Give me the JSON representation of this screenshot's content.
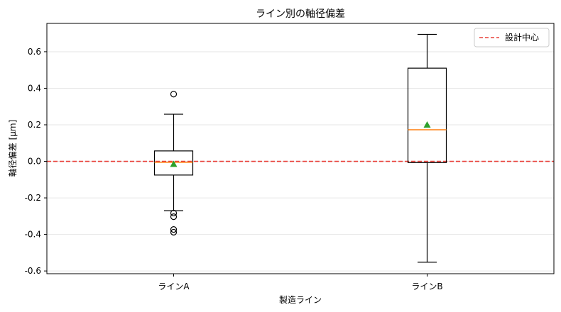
{
  "chart_data": {
    "type": "box",
    "title": "ライン別の軸径偏差",
    "xlabel": "製造ライン",
    "ylabel": "軸径偏差 [μm]",
    "ylim": [
      -0.615,
      0.755
    ],
    "yticks": [
      -0.6,
      -0.4,
      -0.2,
      0.0,
      0.2,
      0.4,
      0.6
    ],
    "ytick_labels": [
      "-0.6",
      "-0.4",
      "-0.2",
      "0.0",
      "0.2",
      "0.4",
      "0.6"
    ],
    "grid": "horizontal",
    "legend_position": "top-right",
    "categories": [
      "ラインA",
      "ラインB"
    ],
    "boxes": [
      {
        "category": "ラインA",
        "whisker_low": -0.27,
        "q1": -0.075,
        "median": -0.005,
        "q3": 0.057,
        "whisker_high": 0.258,
        "mean": -0.015,
        "outliers": [
          0.368,
          -0.283,
          -0.303,
          -0.373,
          -0.388
        ]
      },
      {
        "category": "ラインB",
        "whisker_low": -0.552,
        "q1": -0.007,
        "median": 0.173,
        "q3": 0.51,
        "whisker_high": 0.695,
        "mean": 0.2,
        "outliers": []
      }
    ],
    "reference_line": {
      "value": 0.0,
      "label": "設計中心",
      "color": "#e8403a",
      "style": "dashed"
    },
    "colors": {
      "box": "#000000",
      "median": "#ff7f0e",
      "mean": "#2ca02c",
      "grid": "#e6e6e6"
    }
  }
}
